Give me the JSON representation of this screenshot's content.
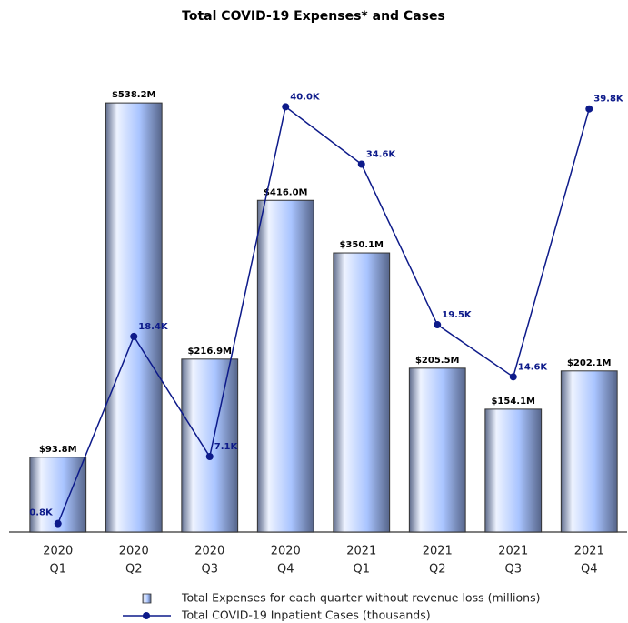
{
  "chart_data": {
    "type": "bar_line",
    "title": "Total COVID-19 Expenses* and Cases",
    "categories": [
      [
        "2020",
        "Q1"
      ],
      [
        "2020",
        "Q2"
      ],
      [
        "2020",
        "Q3"
      ],
      [
        "2020",
        "Q4"
      ],
      [
        "2021",
        "Q1"
      ],
      [
        "2021",
        "Q2"
      ],
      [
        "2021",
        "Q3"
      ],
      [
        "2021",
        "Q4"
      ]
    ],
    "series": [
      {
        "name": "Total Expenses for each quarter without revenue loss (millions)",
        "type": "bar",
        "color": "#a9c4ff",
        "values": [
          93.8,
          538.2,
          216.9,
          416.0,
          350.1,
          205.5,
          154.1,
          202.1
        ],
        "value_labels": [
          "$93.8M",
          "$538.2M",
          "$216.9M",
          "$416.0M",
          "$350.1M",
          "$205.5M",
          "$154.1M",
          "$202.1M"
        ]
      },
      {
        "name": "Total COVID-19 Inpatient Cases (thousands)",
        "type": "line",
        "axis": "y2",
        "color": "#0d1a8a",
        "values": [
          0.8,
          18.4,
          7.1,
          40.0,
          34.6,
          19.5,
          14.6,
          39.8
        ],
        "value_labels": [
          "0.8K",
          "18.4K",
          "7.1K",
          "40.0K",
          "34.6K",
          "19.5K",
          "14.6K",
          "39.8K"
        ]
      }
    ],
    "ylim": [
      0,
      560
    ],
    "y2lim": [
      0,
      42
    ],
    "grid": false,
    "legend": "bottom"
  }
}
